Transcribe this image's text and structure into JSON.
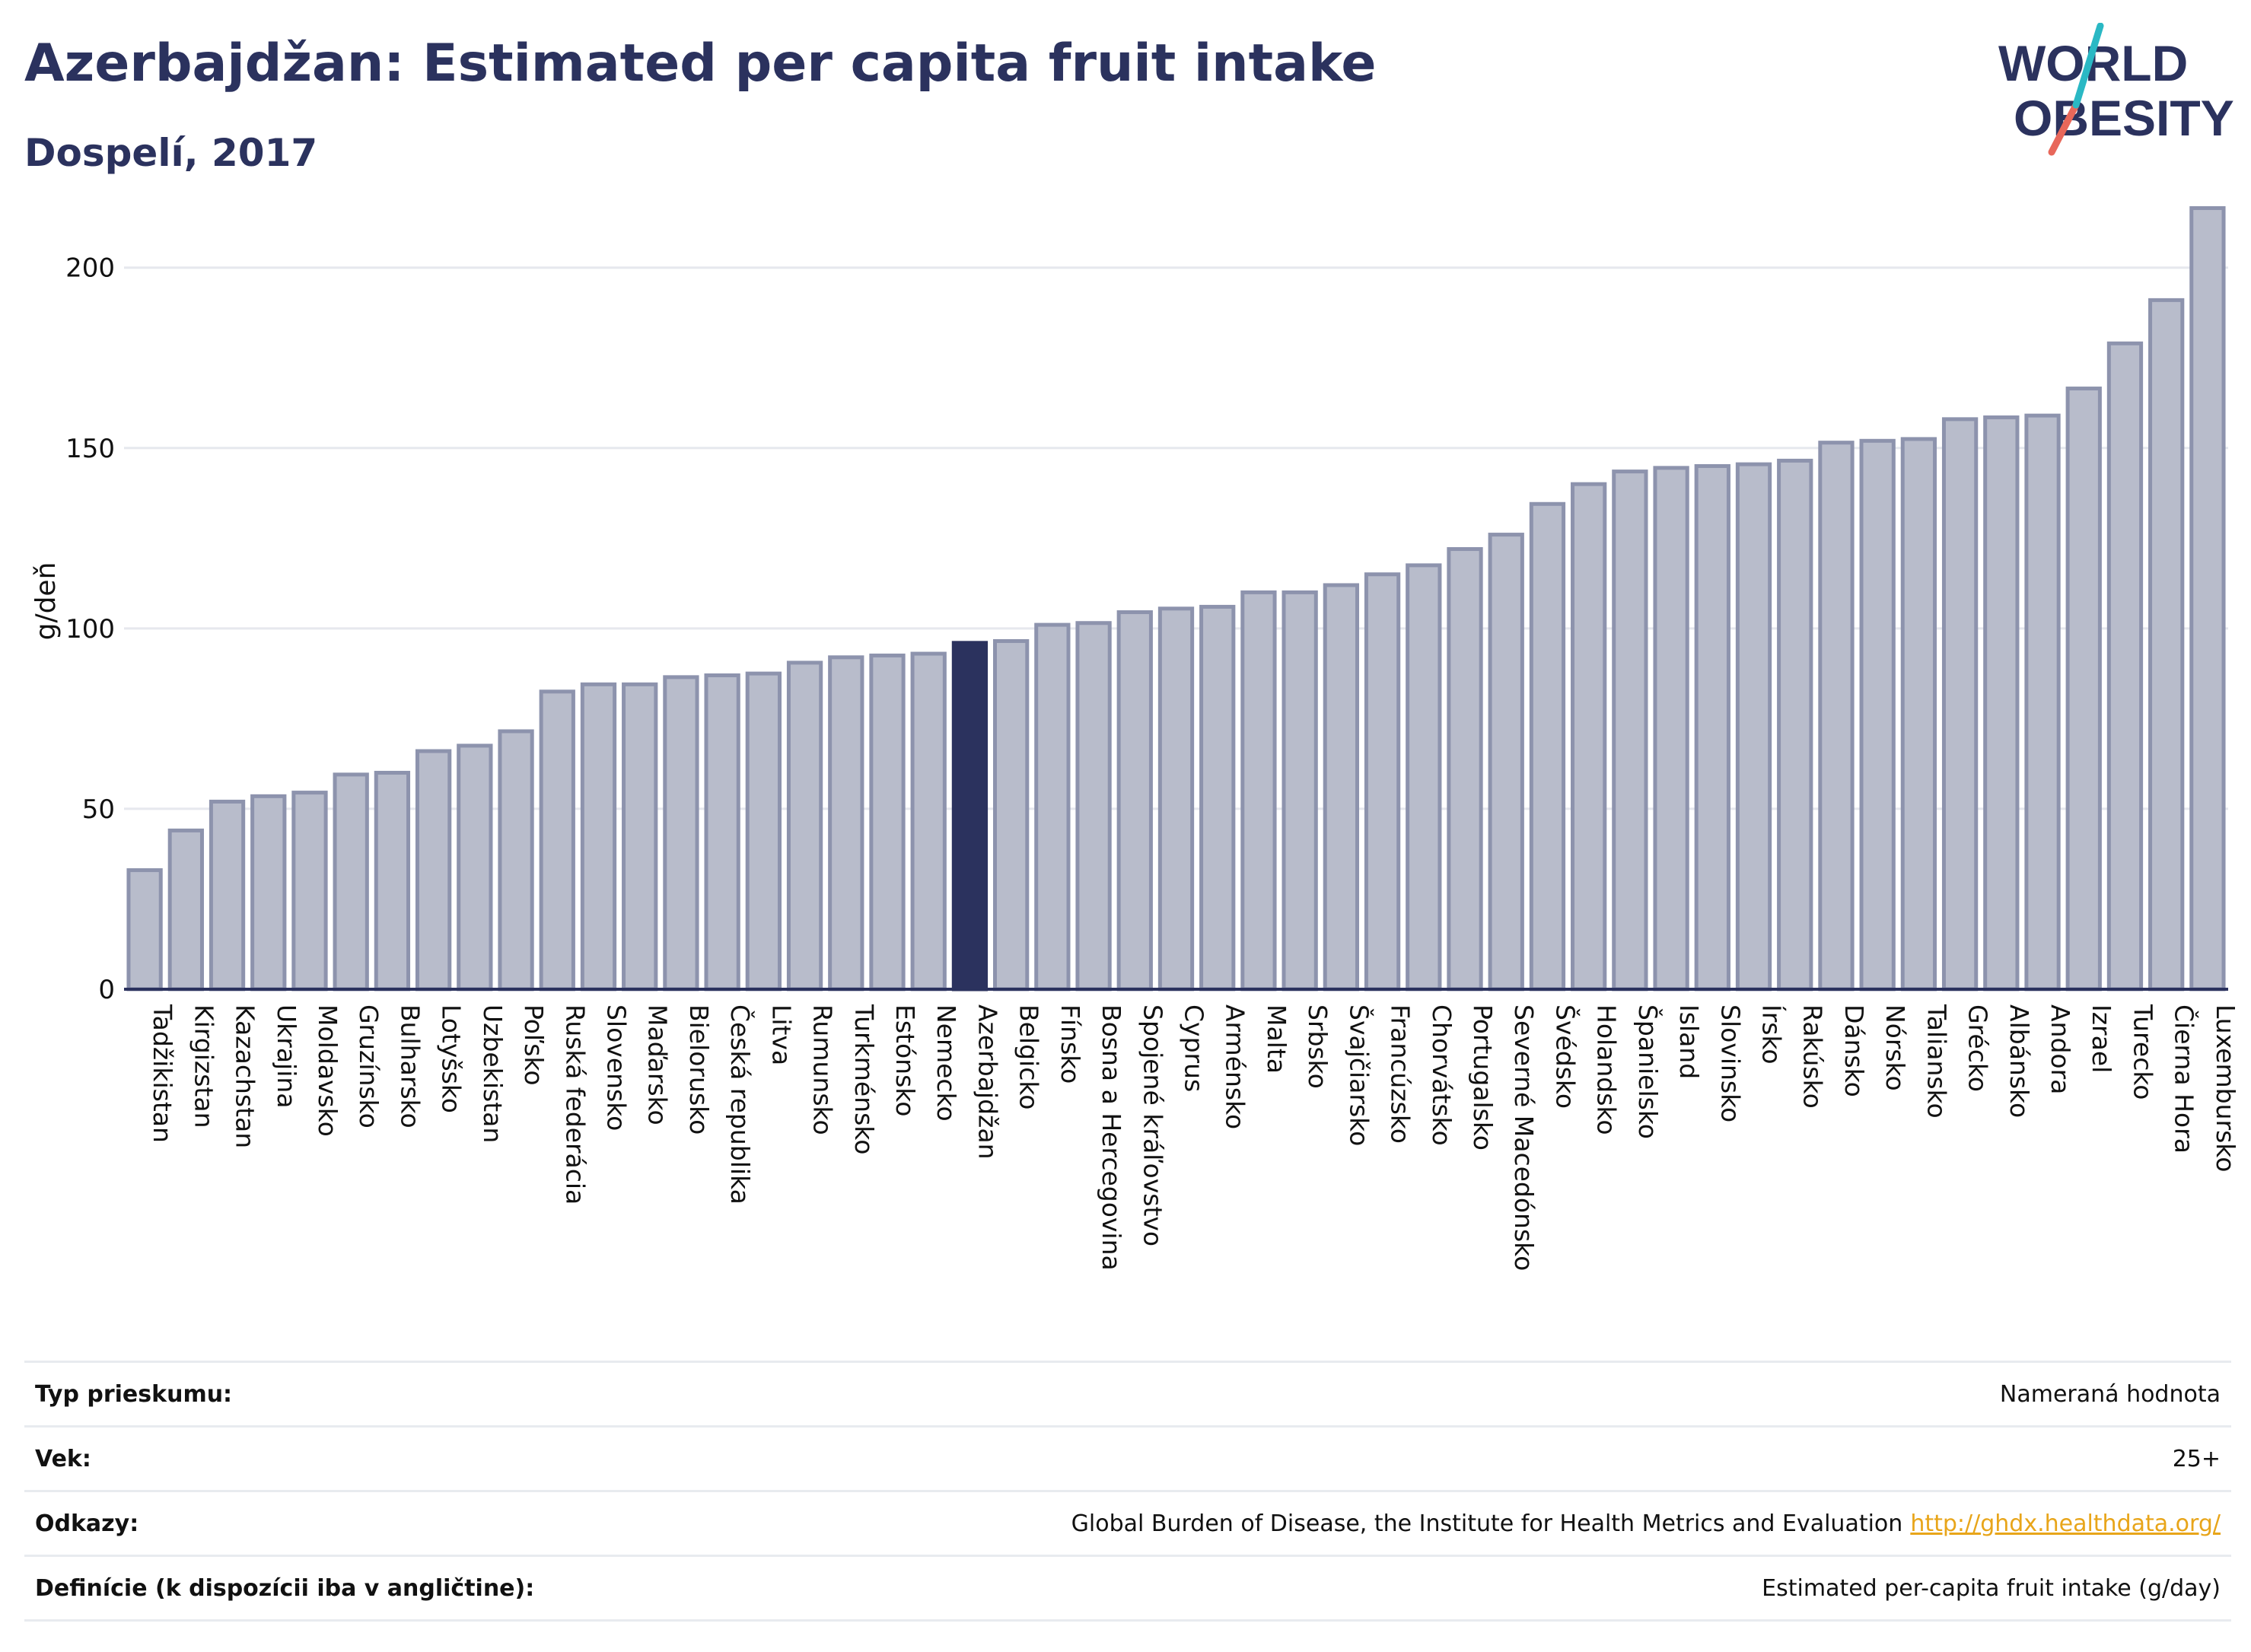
{
  "header": {
    "title": "Azerbajdžan: Estimated per capita fruit intake",
    "subtitle": "Dospelí, 2017"
  },
  "logo": {
    "line1": "WORLD",
    "line2": "OBESITY",
    "colors": {
      "text": "#2b325e",
      "slash_teal": "#2ab8c4",
      "slash_coral": "#e8675a"
    }
  },
  "chart_data": {
    "type": "bar",
    "title": "Azerbajdžan: Estimated per capita fruit intake",
    "subtitle": "Dospelí, 2017",
    "xlabel": "",
    "ylabel": "g/deň",
    "ylim": [
      0,
      220
    ],
    "yticks": [
      0,
      50,
      100,
      150,
      200
    ],
    "grid": true,
    "highlight": "Azerbajdžan",
    "colors": {
      "bar": "#b8bccb",
      "bar_border": "#8d93ad",
      "highlight": "#2b325e"
    },
    "categories": [
      "Tadžikistan",
      "Kirgizstan",
      "Kazachstan",
      "Ukrajina",
      "Moldavsko",
      "Gruzínsko",
      "Bulharsko",
      "Lotyšsko",
      "Uzbekistan",
      "Poľsko",
      "Ruská federácia",
      "Slovensko",
      "Maďarsko",
      "Bielorusko",
      "Česká republika",
      "Litva",
      "Rumunsko",
      "Turkménsko",
      "Estónsko",
      "Nemecko",
      "Azerbajdžan",
      "Belgicko",
      "Fínsko",
      "Bosna a Hercegovina",
      "Spojené kráľovstvo",
      "Cyprus",
      "Arménsko",
      "Malta",
      "Srbsko",
      "Švajčiarsko",
      "Francúzsko",
      "Chorvátsko",
      "Portugalsko",
      "Severné Macedónsko",
      "Švédsko",
      "Holandsko",
      "Španielsko",
      "Island",
      "Slovinsko",
      "Írsko",
      "Rakúsko",
      "Dánsko",
      "Nórsko",
      "Taliansko",
      "Grécko",
      "Albánsko",
      "Andora",
      "Izrael",
      "Turecko",
      "Čierna Hora",
      "Luxembursko"
    ],
    "values": [
      33,
      44,
      52,
      53.5,
      54.5,
      59.5,
      60,
      66,
      67.5,
      71.5,
      82.5,
      84.5,
      84.5,
      86.5,
      87,
      87.5,
      90.5,
      92,
      92.5,
      93,
      96,
      96.5,
      101,
      101.5,
      104.5,
      105.5,
      106,
      110,
      110,
      112,
      115,
      117.5,
      122,
      126,
      134.5,
      140,
      143.5,
      144.5,
      145,
      145.5,
      146.5,
      151.5,
      152,
      152.5,
      158,
      158.5,
      159,
      166.5,
      179,
      191,
      216.5
    ]
  },
  "info": {
    "rows": [
      {
        "label": "Typ prieskumu:",
        "value": "Nameraná hodnota"
      },
      {
        "label": "Vek:",
        "value": "25+"
      },
      {
        "label": "Odkazy:",
        "value": "Global Burden of Disease, the Institute for Health Metrics and Evaluation",
        "link": "http://ghdx.healthdata.org/"
      },
      {
        "label": "Definície (k dispozícii iba v angličtine):",
        "value": "Estimated per-capita fruit intake (g/day)"
      }
    ]
  }
}
